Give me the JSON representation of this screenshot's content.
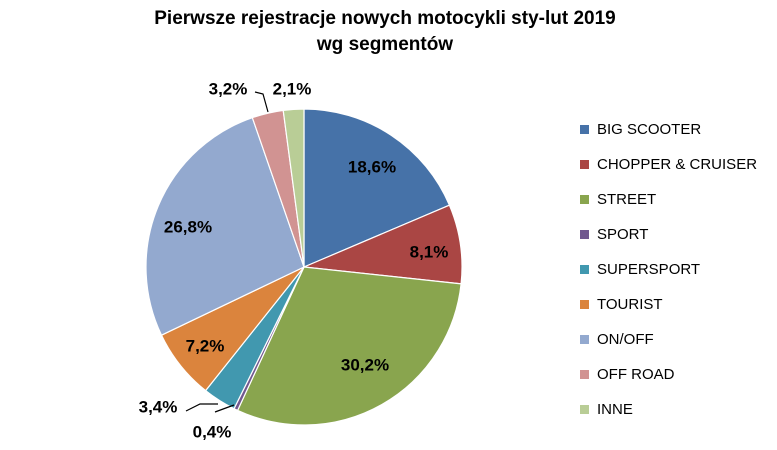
{
  "chart_data": {
    "type": "pie",
    "title": "Pierwsze rejestracje nowych motocykli sty-lut 2019",
    "subtitle": "wg segmentów",
    "legend_position": "right",
    "categories": [
      "BIG SCOOTER",
      "CHOPPER & CRUISER",
      "STREET",
      "SPORT",
      "SUPERSPORT",
      "TOURIST",
      "ON/OFF",
      "OFF ROAD",
      "INNE"
    ],
    "values": [
      18.6,
      8.1,
      30.2,
      0.4,
      3.4,
      7.2,
      26.8,
      3.2,
      2.1
    ],
    "labels": [
      "18,6%",
      "8,1%",
      "30,2%",
      "0,4%",
      "3,4%",
      "7,2%",
      "26,8%",
      "3,2%",
      "2,1%"
    ],
    "colors": [
      "#4672A8",
      "#AA4644",
      "#89A54E",
      "#71588F",
      "#4198AF",
      "#DB843D",
      "#93A9CF",
      "#D19392",
      "#B9CD96"
    ],
    "unit": "%"
  }
}
